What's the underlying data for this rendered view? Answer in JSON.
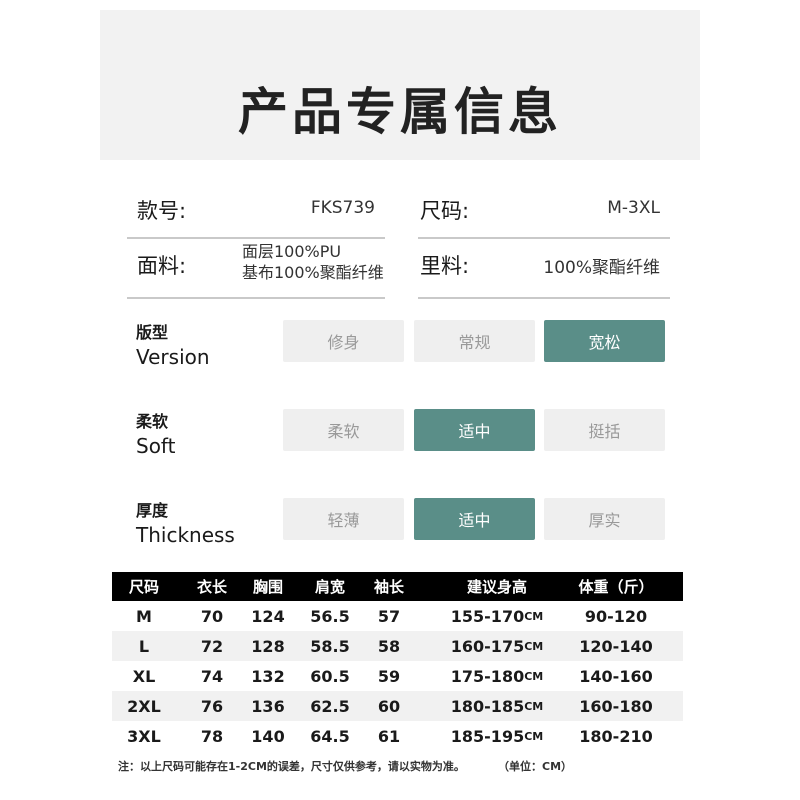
{
  "title": "产品专属信息",
  "info": {
    "style_no": {
      "label": "款号:",
      "value": "FKS739"
    },
    "size": {
      "label": "尺码:",
      "value": "M-3XL"
    },
    "fabric": {
      "label": "面料:",
      "value_line1": "面层100%PU",
      "value_line2": "基布100%聚酯纤维"
    },
    "lining": {
      "label": "里料:",
      "value": "100%聚酯纤维"
    }
  },
  "attributes": [
    {
      "cn": "版型",
      "en": "Version",
      "options": [
        "修身",
        "常规",
        "宽松"
      ],
      "selected": 2
    },
    {
      "cn": "柔软",
      "en": "Soft",
      "options": [
        "柔软",
        "适中",
        "挺括"
      ],
      "selected": 1
    },
    {
      "cn": "厚度",
      "en": "Thickness",
      "options": [
        "轻薄",
        "适中",
        "厚实"
      ],
      "selected": 1
    }
  ],
  "accent_color": "#5a8e88",
  "size_table": {
    "headers": [
      "尺码",
      "衣长",
      "胸围",
      "肩宽",
      "袖长",
      "建议身高",
      "体重（斤）"
    ],
    "height_unit": "CM",
    "rows": [
      [
        "M",
        "70",
        "124",
        "56.5",
        "57",
        "155-170",
        "90-120"
      ],
      [
        "L",
        "72",
        "128",
        "58.5",
        "58",
        "160-175",
        "120-140"
      ],
      [
        "XL",
        "74",
        "132",
        "60.5",
        "59",
        "175-180",
        "140-160"
      ],
      [
        "2XL",
        "76",
        "136",
        "62.5",
        "60",
        "180-185",
        "160-180"
      ],
      [
        "3XL",
        "78",
        "140",
        "64.5",
        "61",
        "185-195",
        "180-210"
      ]
    ]
  },
  "note": "注：以上尺码可能存在1-2CM的误差，尺寸仅供参考，请以实物为准。",
  "unit_note": "（单位：CM）"
}
